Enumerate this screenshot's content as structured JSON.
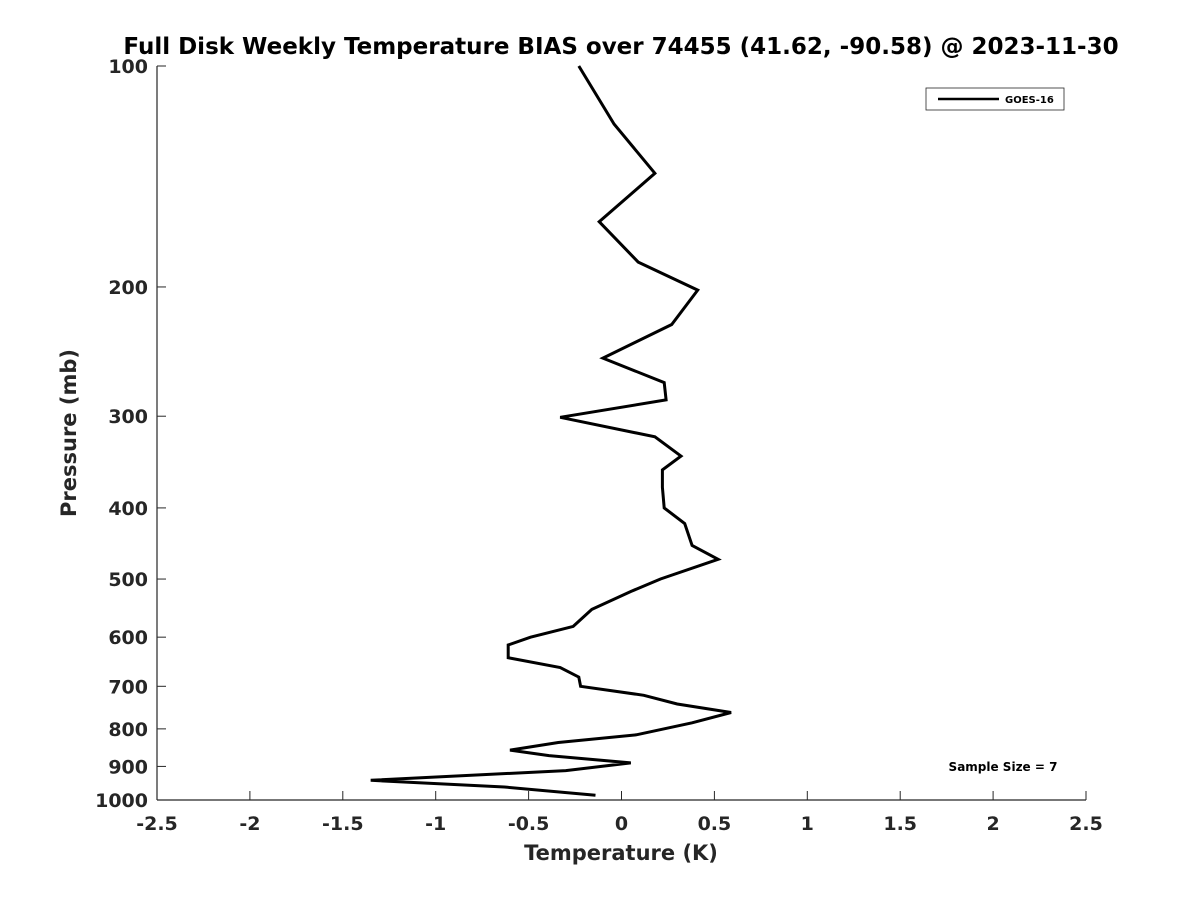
{
  "chart_data": {
    "type": "line",
    "title": "Full Disk Weekly Temperature BIAS over 74455 (41.62, -90.58) @ 2023-11-30",
    "xlabel": "Temperature (K)",
    "ylabel": "Pressure (mb)",
    "xlim": [
      -2.5,
      2.5
    ],
    "ylim": [
      100,
      1000
    ],
    "y_scale": "log",
    "y_reversed": true,
    "x_ticks": [
      -2.5,
      -2,
      -1.5,
      -1,
      -0.5,
      0,
      0.5,
      1,
      1.5,
      2,
      2.5
    ],
    "x_tick_labels": [
      "-2.5",
      "-2",
      "-1.5",
      "-1",
      "-0.5",
      "0",
      "0.5",
      "1",
      "1.5",
      "2",
      "2.5"
    ],
    "y_ticks": [
      100,
      200,
      300,
      400,
      500,
      600,
      700,
      800,
      900,
      1000
    ],
    "y_tick_labels": [
      "100",
      "200",
      "300",
      "400",
      "500",
      "600",
      "700",
      "800",
      "900",
      "1000"
    ],
    "grid": false,
    "legend_position": "top-right",
    "annotation": "Sample Size = 7",
    "series": [
      {
        "name": "GOES-16",
        "color": "#000000",
        "points": [
          [
            -0.23,
            100
          ],
          [
            -0.04,
            120
          ],
          [
            0.18,
            140
          ],
          [
            -0.12,
            163
          ],
          [
            0.09,
            185
          ],
          [
            0.41,
            202
          ],
          [
            0.27,
            225
          ],
          [
            -0.1,
            250
          ],
          [
            0.23,
            270
          ],
          [
            0.24,
            285
          ],
          [
            -0.33,
            301
          ],
          [
            0.18,
            320
          ],
          [
            0.32,
            340
          ],
          [
            0.22,
            355
          ],
          [
            0.22,
            375
          ],
          [
            0.23,
            400
          ],
          [
            0.34,
            420
          ],
          [
            0.38,
            450
          ],
          [
            0.52,
            470
          ],
          [
            0.21,
            500
          ],
          [
            0.05,
            520
          ],
          [
            -0.16,
            550
          ],
          [
            -0.26,
            580
          ],
          [
            -0.49,
            600
          ],
          [
            -0.61,
            615
          ],
          [
            -0.61,
            640
          ],
          [
            -0.33,
            660
          ],
          [
            -0.23,
            680
          ],
          [
            -0.22,
            700
          ],
          [
            0.12,
            720
          ],
          [
            0.3,
            740
          ],
          [
            0.59,
            760
          ],
          [
            0.38,
            785
          ],
          [
            0.08,
            815
          ],
          [
            -0.34,
            835
          ],
          [
            -0.6,
            855
          ],
          [
            -0.39,
            870
          ],
          [
            0.05,
            890
          ],
          [
            -0.3,
            912
          ],
          [
            -1.35,
            940
          ],
          [
            -0.63,
            960
          ],
          [
            -0.14,
            985
          ]
        ]
      }
    ]
  }
}
